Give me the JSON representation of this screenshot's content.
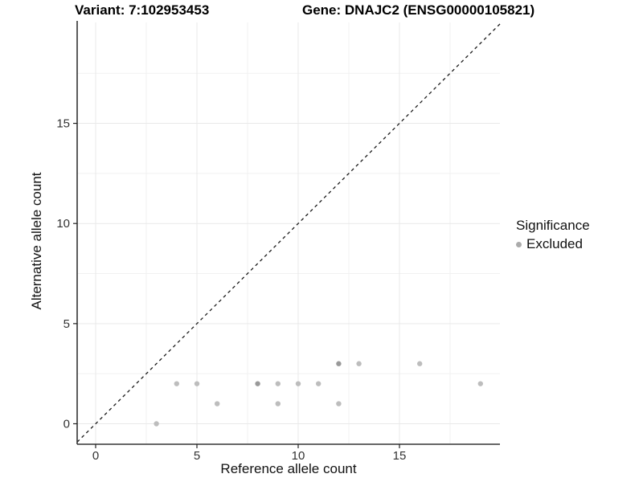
{
  "titles": {
    "variant": "Variant: 7:102953453",
    "gene": "Gene: DNAJC2 (ENSG00000105821)"
  },
  "legend": {
    "title": "Significance",
    "items": [
      {
        "label": "Excluded",
        "color": "#ababab"
      }
    ]
  },
  "colors": {
    "point": "#bdbdbd",
    "point_overplotted": "#999999",
    "grid_major": "#e9e9e9",
    "grid_minor": "#f1f1f1",
    "axis_line": "#333333",
    "tick": "#222222",
    "tick_label": "#333333",
    "identity_line": "#1a1a1a",
    "background": "#ffffff"
  },
  "chart_data": {
    "type": "scatter",
    "title": "Variant: 7:102953453   Gene: DNAJC2 (ENSG00000105821)",
    "xlabel": "Reference allele count",
    "ylabel": "Alternative allele count",
    "xlim": [
      -0.91,
      19.96
    ],
    "ylim": [
      -1.02,
      20.0
    ],
    "x_ticks": [
      0,
      5,
      10,
      15
    ],
    "y_ticks": [
      0,
      5,
      10,
      15
    ],
    "x_minor_gridlines": [
      2.5,
      7.5,
      12.5,
      17.5
    ],
    "y_minor_gridlines": [
      2.5,
      7.5,
      12.5,
      17.5
    ],
    "grid": true,
    "legend_position": "right",
    "identity_line": {
      "style": "dashed",
      "equation": "y = x"
    },
    "series": [
      {
        "name": "Excluded",
        "points": [
          [
            3,
            0
          ],
          [
            4,
            2
          ],
          [
            5,
            2
          ],
          [
            6,
            1
          ],
          [
            8,
            2
          ],
          [
            9,
            1
          ],
          [
            9,
            2
          ],
          [
            10,
            2
          ],
          [
            11,
            2
          ],
          [
            12,
            1
          ],
          [
            12,
            3
          ],
          [
            13,
            3
          ],
          [
            16,
            3
          ],
          [
            19,
            2
          ]
        ],
        "overplotted_points": [
          [
            8,
            2
          ],
          [
            12,
            3
          ]
        ]
      }
    ]
  }
}
